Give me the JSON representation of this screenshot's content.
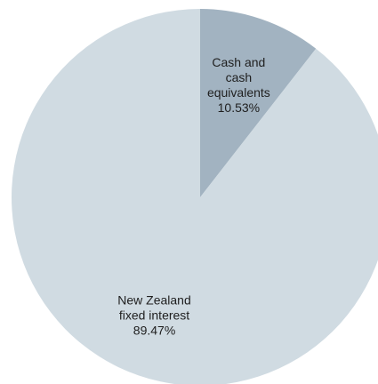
{
  "chart_data": {
    "type": "pie",
    "title": "",
    "legend": "none",
    "slices": [
      {
        "name_lines": [
          "Cash and",
          "cash",
          "equivalents"
        ],
        "value": 10.53,
        "value_label": "10.53%",
        "color": "#a2b3c1"
      },
      {
        "name_lines": [
          "New Zealand",
          "fixed interest"
        ],
        "value": 89.47,
        "value_label": "89.47%",
        "color": "#d0dbe2"
      }
    ]
  }
}
